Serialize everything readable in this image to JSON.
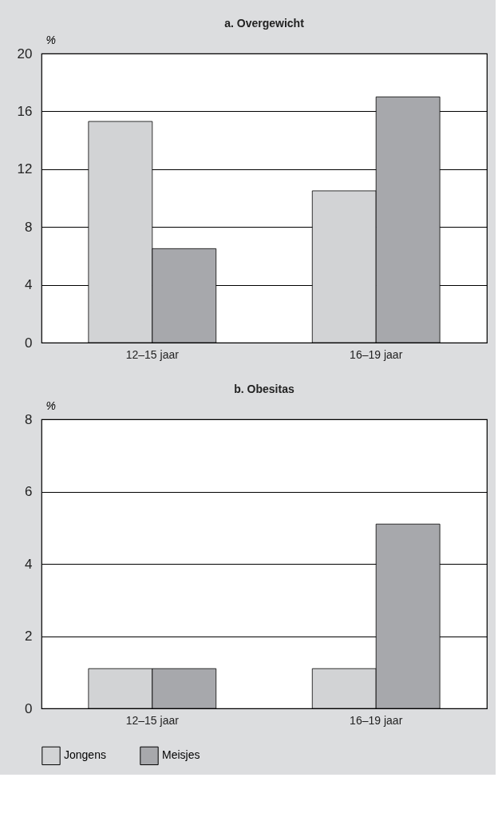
{
  "chart_data": [
    {
      "type": "bar",
      "title": "a. Overgewicht",
      "ylabel": "%",
      "categories": [
        "12–15 jaar",
        "16–19 jaar"
      ],
      "ylim": [
        0,
        20
      ],
      "yticks": [
        0,
        4,
        8,
        12,
        16,
        20
      ],
      "grid": "y",
      "legend": "bottom left",
      "series": [
        {
          "name": "Jongens",
          "color": "#d2d3d5",
          "values": [
            15.3,
            10.5
          ]
        },
        {
          "name": "Meisjes",
          "color": "#a7a8ac",
          "values": [
            6.5,
            17.0
          ]
        }
      ]
    },
    {
      "type": "bar",
      "title": "b. Obesitas",
      "ylabel": "%",
      "categories": [
        "12–15 jaar",
        "16–19 jaar"
      ],
      "ylim": [
        0,
        8
      ],
      "yticks": [
        0,
        2,
        4,
        6,
        8
      ],
      "grid": "y",
      "legend": "bottom left",
      "series": [
        {
          "name": "Jongens",
          "color": "#d2d3d5",
          "values": [
            1.1,
            1.1
          ]
        },
        {
          "name": "Meisjes",
          "color": "#a7a8ac",
          "values": [
            1.1,
            5.1
          ]
        }
      ]
    }
  ]
}
